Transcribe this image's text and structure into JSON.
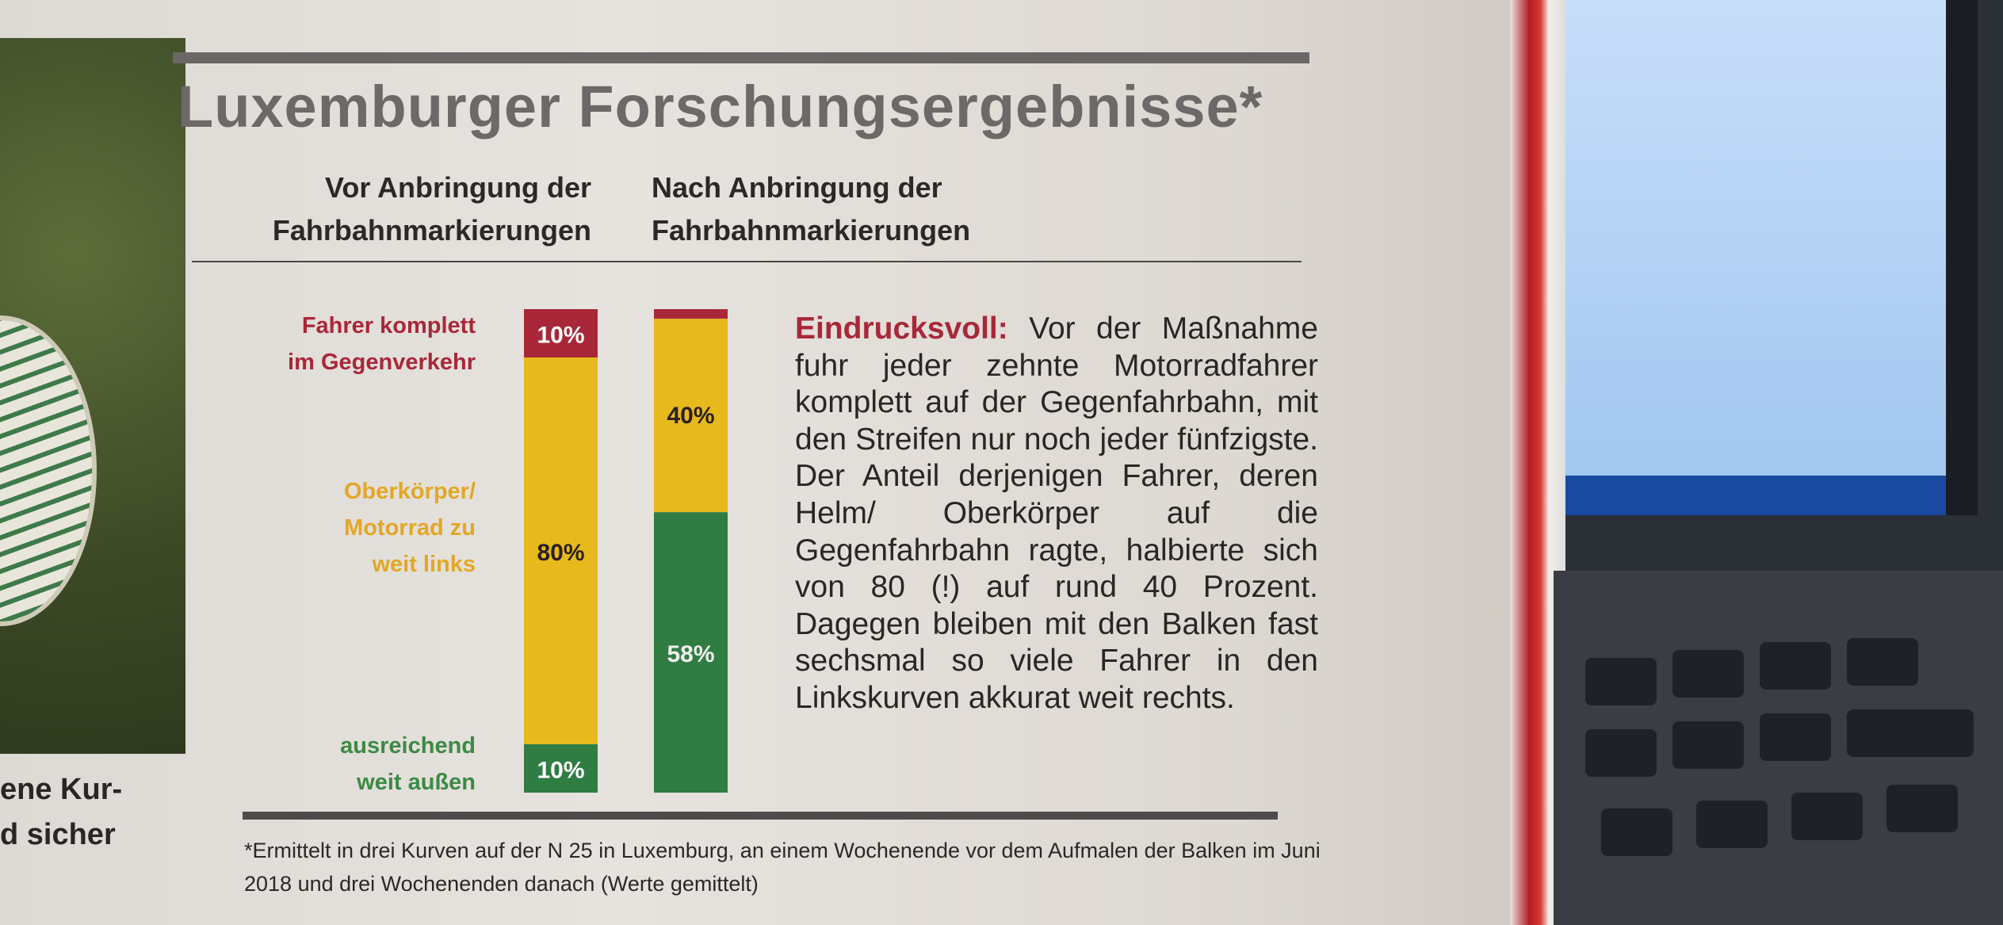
{
  "left_photo_caption": [
    "ene Kur-",
    "d sicher"
  ],
  "title": "Luxemburger Forschungsergebnisse*",
  "subheads": {
    "before": [
      "Vor Anbringung der",
      "Fahrbahnmarkierungen"
    ],
    "after": [
      "Nach Anbringung der",
      "Fahrbahnmarkierungen"
    ]
  },
  "body": {
    "lead": "Eindrucksvoll:",
    "text": " Vor der Maßnahme fuhr jeder zehnte Motorradfahrer komplett auf der Gegenfahrbahn, mit den Streifen nur noch jeder fünfzigste. Der Anteil derjenigen Fahrer, deren Helm/ Oberkörper auf die Gegenfahrbahn ragte, halbierte sich von 80 (!) auf rund 40 Prozent. Dagegen bleiben mit den Balken fast sechsmal so viele Fahrer in den Linkskurven akkurat weit rechts."
  },
  "footnote": "*Ermittelt in drei Kurven auf der N 25 in Luxemburg, an einem Wochenende vor dem Aufmalen der Balken im Juni 2018 und drei Wochenenden danach (Werte gemittelt)",
  "chart_data": {
    "type": "bar",
    "stacked": true,
    "orientation": "vertical",
    "title": "Luxemburger Forschungsergebnisse*",
    "categories": [
      "Vor Anbringung der Fahrbahnmarkierungen",
      "Nach Anbringung der Fahrbahnmarkierungen"
    ],
    "series": [
      {
        "name": "Fahrer komplett im Gegenverkehr",
        "label_lines": [
          "Fahrer komplett",
          "im Gegenverkehr"
        ],
        "color": "#a8283a",
        "values": [
          10,
          2
        ],
        "labels": [
          "10%",
          "2%"
        ]
      },
      {
        "name": "Oberkörper/Motorrad zu weit links",
        "label_lines": [
          "Oberkörper/",
          "Motorrad zu",
          "weit links"
        ],
        "color": "#e8b91c",
        "values": [
          80,
          40
        ],
        "labels": [
          "80%",
          "40%"
        ]
      },
      {
        "name": "ausreichend weit außen",
        "label_lines": [
          "ausreichend",
          "weit außen"
        ],
        "color": "#2f7d43",
        "values": [
          10,
          58
        ],
        "labels": [
          "10%",
          "58%"
        ]
      }
    ],
    "ylim": [
      0,
      100
    ],
    "unit": "%",
    "grid": false,
    "legend": "left"
  }
}
